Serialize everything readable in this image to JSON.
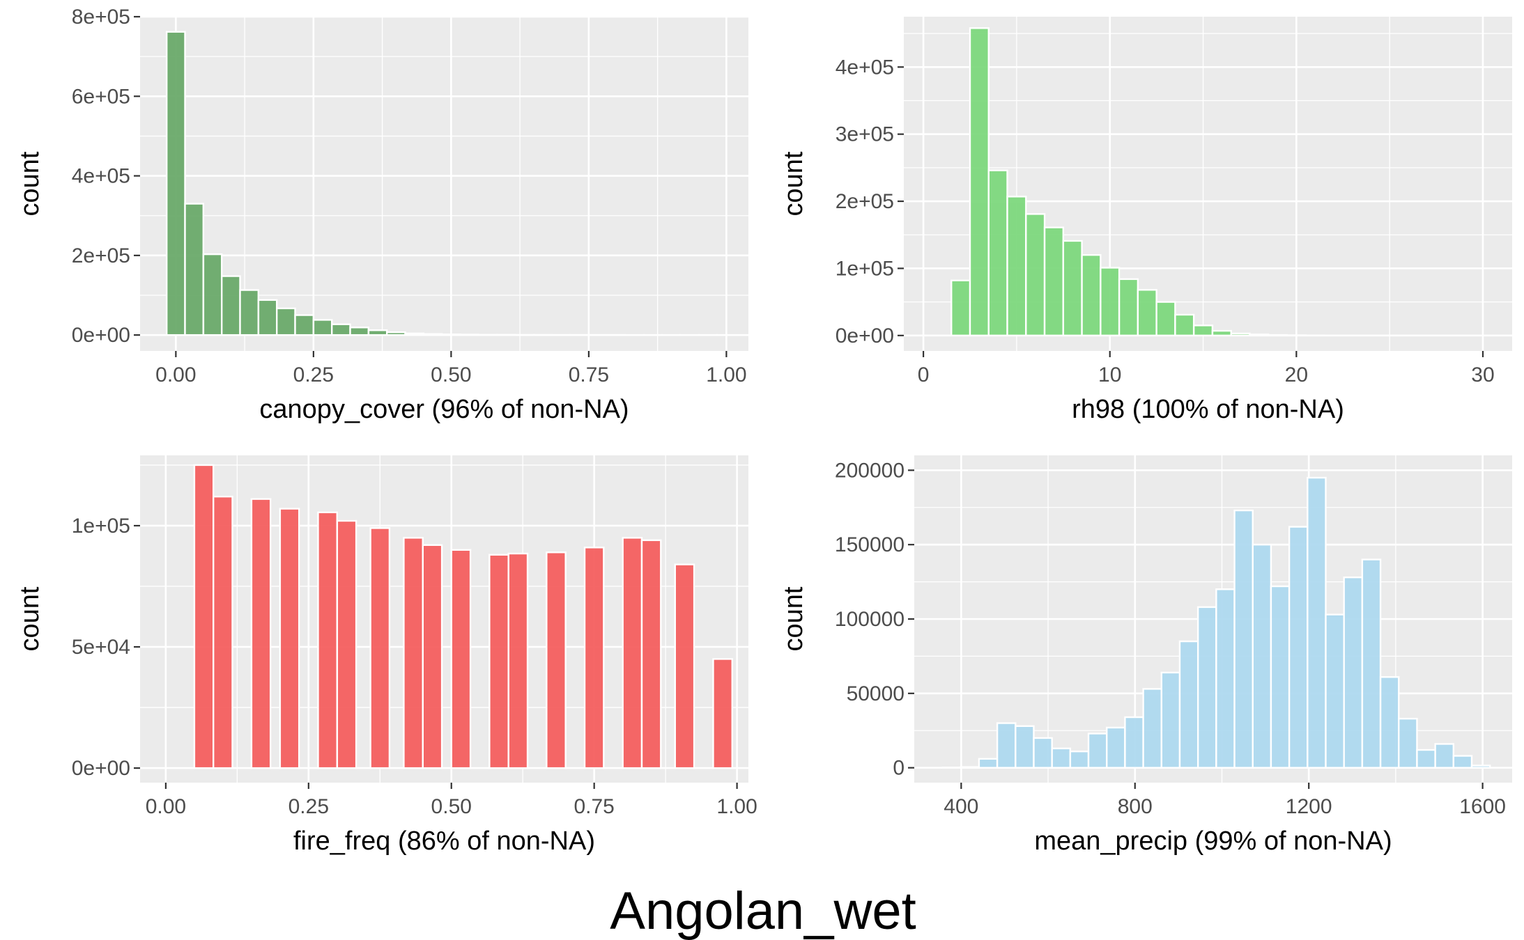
{
  "figure": {
    "title": "Angolan_wet"
  },
  "chart_data": [
    {
      "type": "bar",
      "id": "canopy",
      "xlabel": "canopy_cover (96% of non-NA)",
      "ylabel": "count",
      "fill_color": "#6aaa6a",
      "xlim": [
        -0.065,
        1.04
      ],
      "ylim": [
        -40000,
        800000
      ],
      "x_ticks": [
        0,
        0.25,
        0.5,
        0.75,
        1
      ],
      "x_tick_labels": [
        "0.00",
        "0.25",
        "0.50",
        "0.75",
        "1.00"
      ],
      "y_ticks": [
        0,
        200000,
        400000,
        600000,
        800000
      ],
      "y_tick_labels": [
        "0e+00",
        "2e+05",
        "4e+05",
        "6e+05",
        "8e+05"
      ],
      "bin_width": 0.0333,
      "bin_centers": [
        0,
        0.0333,
        0.0667,
        0.1,
        0.1333,
        0.1667,
        0.2,
        0.2333,
        0.2667,
        0.3,
        0.3333,
        0.3667,
        0.4,
        0.4333,
        0.4667,
        0.5,
        0.5333,
        0.5667,
        0.6,
        0.6333,
        0.6667,
        0.7,
        0.7333,
        0.7667,
        0.8,
        0.8333,
        0.8667,
        0.9,
        0.9333,
        0.9667,
        1
      ],
      "values": [
        762000,
        330000,
        203000,
        148000,
        113000,
        88000,
        67000,
        50000,
        38000,
        27000,
        19000,
        12000,
        7000,
        4000,
        2500,
        1500,
        1000,
        700,
        500,
        400,
        300,
        200,
        150,
        100,
        80,
        60,
        40,
        30,
        20,
        10,
        5
      ]
    },
    {
      "type": "bar",
      "id": "rh98",
      "xlabel": "rh98 (100% of non-NA)",
      "ylabel": "count",
      "fill_color": "#7dd87d",
      "xlim": [
        -1.05,
        31.57
      ],
      "ylim": [
        -23000,
        475000
      ],
      "x_ticks": [
        0,
        10,
        20,
        30
      ],
      "x_tick_labels": [
        "0",
        "10",
        "20",
        "30"
      ],
      "y_ticks": [
        0,
        100000,
        200000,
        300000,
        400000
      ],
      "y_tick_labels": [
        "0e+00",
        "1e+05",
        "2e+05",
        "3e+05",
        "4e+05"
      ],
      "bin_width": 1,
      "bin_centers": [
        0,
        1,
        2,
        3,
        4,
        5,
        6,
        7,
        8,
        9,
        10,
        11,
        12,
        13,
        14,
        15,
        16,
        17,
        18,
        19,
        20,
        21,
        22,
        23,
        24,
        25,
        26,
        27,
        28,
        29,
        30
      ],
      "values": [
        0,
        0,
        82000,
        458000,
        246000,
        207000,
        181000,
        161000,
        141000,
        120000,
        101000,
        84000,
        68000,
        50000,
        31000,
        15000,
        7000,
        3000,
        1500,
        800,
        400,
        200,
        100,
        60,
        30,
        20,
        10,
        5,
        3,
        2,
        1
      ]
    },
    {
      "type": "bar",
      "id": "fire",
      "xlabel": "fire_freq (86% of non-NA)",
      "ylabel": "count",
      "fill_color": "#f45f5f",
      "xlim": [
        -0.045,
        1.02
      ],
      "ylim": [
        -6000,
        129000
      ],
      "x_ticks": [
        0,
        0.25,
        0.5,
        0.75,
        1
      ],
      "x_tick_labels": [
        "0.00",
        "0.25",
        "0.50",
        "0.75",
        "1.00"
      ],
      "y_ticks": [
        0,
        50000,
        100000
      ],
      "y_tick_labels": [
        "0e+00",
        "5e+04",
        "1e+05"
      ],
      "bin_width": 0.0333,
      "bin_centers": [
        0.0667,
        0.1,
        0.1667,
        0.2167,
        0.2833,
        0.3167,
        0.375,
        0.4333,
        0.4667,
        0.5167,
        0.5833,
        0.6167,
        0.6833,
        0.75,
        0.8167,
        0.85,
        0.9083,
        0.975
      ],
      "values": [
        125000,
        112000,
        111000,
        107000,
        105500,
        102000,
        99000,
        95000,
        92000,
        90000,
        88000,
        88500,
        89000,
        91000,
        95000,
        94000,
        84000,
        45000
      ]
    },
    {
      "type": "bar",
      "id": "precip",
      "xlabel": "mean_precip (99% of non-NA)",
      "ylabel": "count",
      "fill_color": "#aed9ef",
      "xlim": [
        292,
        1668
      ],
      "ylim": [
        -10000,
        210000
      ],
      "x_ticks": [
        400,
        800,
        1200,
        1600
      ],
      "x_tick_labels": [
        "400",
        "800",
        "1200",
        "1600"
      ],
      "y_ticks": [
        0,
        50000,
        100000,
        150000,
        200000
      ],
      "y_tick_labels": [
        "0",
        "50000",
        "100000",
        "150000",
        "200000"
      ],
      "bin_width": 42,
      "bin_centers": [
        378,
        420,
        462,
        504,
        546,
        588,
        630,
        672,
        714,
        756,
        798,
        840,
        882,
        924,
        966,
        1008,
        1050,
        1092,
        1134,
        1176,
        1218,
        1260,
        1302,
        1344,
        1386,
        1428,
        1470,
        1512,
        1554,
        1596
      ],
      "values": [
        200,
        500,
        6000,
        30000,
        28000,
        20000,
        13000,
        11000,
        23000,
        27000,
        34000,
        53000,
        64000,
        85000,
        108000,
        120000,
        173000,
        150000,
        122000,
        162000,
        195000,
        103000,
        128000,
        140000,
        61000,
        33000,
        12000,
        16000,
        8000,
        1500
      ]
    }
  ]
}
